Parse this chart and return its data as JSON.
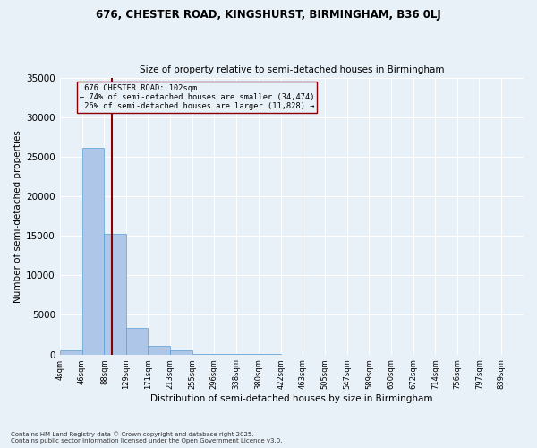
{
  "title1": "676, CHESTER ROAD, KINGSHURST, BIRMINGHAM, B36 0LJ",
  "title2": "Size of property relative to semi-detached houses in Birmingham",
  "xlabel": "Distribution of semi-detached houses by size in Birmingham",
  "ylabel": "Number of semi-detached properties",
  "bin_labels": [
    "4sqm",
    "46sqm",
    "88sqm",
    "129sqm",
    "171sqm",
    "213sqm",
    "255sqm",
    "296sqm",
    "338sqm",
    "380sqm",
    "422sqm",
    "463sqm",
    "505sqm",
    "547sqm",
    "589sqm",
    "630sqm",
    "672sqm",
    "714sqm",
    "756sqm",
    "797sqm",
    "839sqm"
  ],
  "bin_values": [
    500,
    26100,
    15200,
    3400,
    1100,
    500,
    50,
    30,
    15,
    10,
    5,
    5,
    3,
    2,
    2,
    1,
    1,
    1,
    1,
    0,
    0
  ],
  "bar_color": "#aec6e8",
  "bar_edge_color": "#5a9fd4",
  "bg_color": "#e8f0f8",
  "grid_color": "#ffffff",
  "property_size": 102,
  "property_label": "676 CHESTER ROAD: 102sqm",
  "pct_smaller": 74,
  "pct_larger": 26,
  "n_smaller": 34474,
  "n_larger": 11828,
  "vline_color": "#8b0000",
  "annotation_box_color": "#8b0000",
  "ylim": [
    0,
    35000
  ],
  "yticks": [
    0,
    5000,
    10000,
    15000,
    20000,
    25000,
    30000,
    35000
  ],
  "footnote1": "Contains HM Land Registry data © Crown copyright and database right 2025.",
  "footnote2": "Contains public sector information licensed under the Open Government Licence v3.0."
}
